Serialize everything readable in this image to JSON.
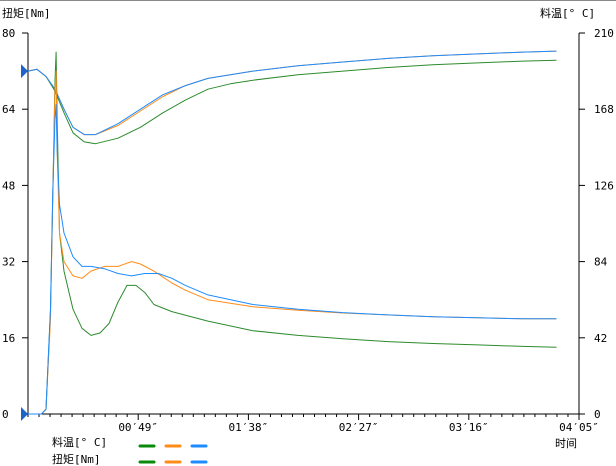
{
  "chart_data": {
    "type": "line",
    "left_axis": {
      "label": "扭矩[Nm]",
      "ylim": [
        0,
        80
      ],
      "ticks": [
        "0",
        "16",
        "32",
        "48",
        "64",
        "80"
      ],
      "reference_value": 72
    },
    "right_axis": {
      "label": "料温[° C]",
      "ylim": [
        0,
        210
      ],
      "ticks": [
        "0",
        "42",
        "84",
        "126",
        "168",
        "210"
      ],
      "reference_value": 0
    },
    "x_axis": {
      "label": "时间",
      "ticks": [
        "00′49″",
        "01′38″",
        "02′27″",
        "03′16″",
        "04′05″"
      ]
    },
    "legend": {
      "rows": [
        {
          "label": "料温[° C]",
          "colors": [
            "#0a8a0a",
            "#ff8c1a",
            "#1e8cff"
          ]
        },
        {
          "label": "扭矩[Nm]",
          "colors": [
            "#0a8a0a",
            "#ff8c1a",
            "#1e8cff"
          ]
        }
      ]
    },
    "series": [
      {
        "axis": "right",
        "color": "#2e8b2e",
        "points": [
          [
            0,
            189
          ],
          [
            4,
            190
          ],
          [
            8,
            186
          ],
          [
            12,
            178
          ],
          [
            16,
            166
          ],
          [
            20,
            155
          ],
          [
            25,
            150
          ],
          [
            30,
            149
          ],
          [
            40,
            152
          ],
          [
            50,
            158
          ],
          [
            60,
            166
          ],
          [
            70,
            173
          ],
          [
            80,
            179
          ],
          [
            90,
            182
          ],
          [
            100,
            184
          ],
          [
            120,
            187
          ],
          [
            140,
            189
          ],
          [
            160,
            191
          ],
          [
            180,
            192.5
          ],
          [
            200,
            193.5
          ],
          [
            220,
            194.5
          ],
          [
            235,
            195
          ]
        ]
      },
      {
        "axis": "right",
        "color": "#ff8c1a",
        "points": [
          [
            0,
            189
          ],
          [
            4,
            190
          ],
          [
            8,
            186
          ],
          [
            12,
            179
          ],
          [
            16,
            168
          ],
          [
            20,
            158
          ],
          [
            25,
            154
          ],
          [
            30,
            154
          ],
          [
            40,
            159
          ],
          [
            50,
            167
          ],
          [
            60,
            175
          ],
          [
            70,
            181
          ],
          [
            80,
            185
          ],
          [
            90,
            187
          ],
          [
            100,
            189
          ],
          [
            120,
            192
          ],
          [
            140,
            194
          ],
          [
            160,
            196
          ],
          [
            180,
            197.5
          ],
          [
            200,
            198.5
          ],
          [
            220,
            199.5
          ],
          [
            235,
            200
          ]
        ]
      },
      {
        "axis": "right",
        "color": "#1e8cff",
        "points": [
          [
            0,
            189
          ],
          [
            4,
            190
          ],
          [
            8,
            186
          ],
          [
            12,
            179
          ],
          [
            16,
            168
          ],
          [
            20,
            158
          ],
          [
            25,
            154
          ],
          [
            30,
            154
          ],
          [
            40,
            160
          ],
          [
            50,
            168
          ],
          [
            60,
            176
          ],
          [
            70,
            181
          ],
          [
            80,
            185
          ],
          [
            90,
            187
          ],
          [
            100,
            189
          ],
          [
            120,
            192
          ],
          [
            140,
            194
          ],
          [
            160,
            196
          ],
          [
            180,
            197.5
          ],
          [
            200,
            198.5
          ],
          [
            220,
            199.5
          ],
          [
            235,
            200
          ]
        ]
      },
      {
        "axis": "left",
        "color": "#2e8b2e",
        "points": [
          [
            0,
            0
          ],
          [
            6,
            0
          ],
          [
            8,
            1
          ],
          [
            10,
            22
          ],
          [
            11,
            45
          ],
          [
            12,
            70
          ],
          [
            12.5,
            76
          ],
          [
            13,
            62
          ],
          [
            14,
            38
          ],
          [
            16,
            30
          ],
          [
            20,
            22
          ],
          [
            24,
            18
          ],
          [
            28,
            16.5
          ],
          [
            32,
            17
          ],
          [
            36,
            19
          ],
          [
            40,
            23.5
          ],
          [
            44,
            27
          ],
          [
            48,
            27
          ],
          [
            52,
            25.5
          ],
          [
            56,
            23
          ],
          [
            64,
            21.5
          ],
          [
            80,
            19.5
          ],
          [
            100,
            17.5
          ],
          [
            120,
            16.5
          ],
          [
            140,
            15.8
          ],
          [
            160,
            15.2
          ],
          [
            180,
            14.8
          ],
          [
            200,
            14.5
          ],
          [
            220,
            14.2
          ],
          [
            235,
            14
          ]
        ]
      },
      {
        "axis": "left",
        "color": "#ff8c1a",
        "points": [
          [
            0,
            0
          ],
          [
            6,
            0
          ],
          [
            8,
            1
          ],
          [
            10,
            20
          ],
          [
            11,
            45
          ],
          [
            12,
            68
          ],
          [
            12.5,
            72
          ],
          [
            13,
            55
          ],
          [
            14,
            38
          ],
          [
            16,
            32
          ],
          [
            20,
            29
          ],
          [
            24,
            28.5
          ],
          [
            28,
            30
          ],
          [
            34,
            31
          ],
          [
            40,
            31
          ],
          [
            46,
            32
          ],
          [
            50,
            31.5
          ],
          [
            56,
            30
          ],
          [
            64,
            27.5
          ],
          [
            70,
            26
          ],
          [
            80,
            24
          ],
          [
            100,
            22.5
          ],
          [
            120,
            21.8
          ],
          [
            140,
            21.2
          ],
          [
            160,
            20.8
          ],
          [
            180,
            20.4
          ],
          [
            200,
            20.2
          ],
          [
            220,
            20
          ],
          [
            235,
            20
          ]
        ]
      },
      {
        "axis": "left",
        "color": "#1e8cff",
        "points": [
          [
            0,
            0
          ],
          [
            6,
            0
          ],
          [
            8,
            1
          ],
          [
            10,
            22
          ],
          [
            11,
            46
          ],
          [
            12,
            62
          ],
          [
            12.5,
            65
          ],
          [
            13,
            55
          ],
          [
            14,
            44
          ],
          [
            16,
            38
          ],
          [
            20,
            33
          ],
          [
            24,
            31
          ],
          [
            28,
            31
          ],
          [
            34,
            30.5
          ],
          [
            40,
            29.5
          ],
          [
            46,
            29
          ],
          [
            52,
            29.5
          ],
          [
            58,
            29.5
          ],
          [
            64,
            28.5
          ],
          [
            70,
            27
          ],
          [
            80,
            25
          ],
          [
            100,
            23
          ],
          [
            120,
            22
          ],
          [
            140,
            21.3
          ],
          [
            160,
            20.8
          ],
          [
            180,
            20.4
          ],
          [
            200,
            20.2
          ],
          [
            220,
            20
          ],
          [
            235,
            20
          ]
        ]
      }
    ]
  }
}
